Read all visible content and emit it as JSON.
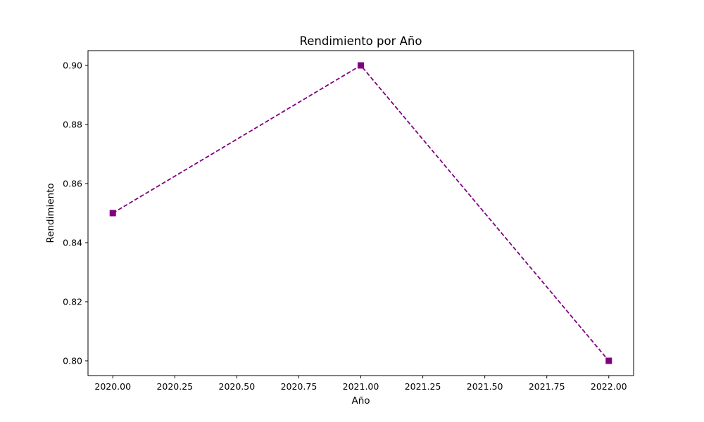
{
  "chart_data": {
    "type": "line",
    "title": "Rendimiento por Año",
    "xlabel": "Año",
    "ylabel": "Rendimiento",
    "x": [
      2020,
      2021,
      2022
    ],
    "series": [
      {
        "values": [
          0.85,
          0.9,
          0.8
        ],
        "color": "#800080",
        "line_style": "dashed",
        "marker": "square"
      }
    ],
    "xlim": [
      1999.9,
      2022.1
    ],
    "ylim": [
      0.795,
      0.905
    ],
    "xticks": [
      "2020.00",
      "2020.25",
      "2020.50",
      "2020.75",
      "2021.00",
      "2021.25",
      "2021.50",
      "2021.75",
      "2022.00"
    ],
    "yticks": [
      "0.80",
      "0.82",
      "0.84",
      "0.86",
      "0.88",
      "0.90"
    ],
    "grid": false,
    "legend": false
  }
}
